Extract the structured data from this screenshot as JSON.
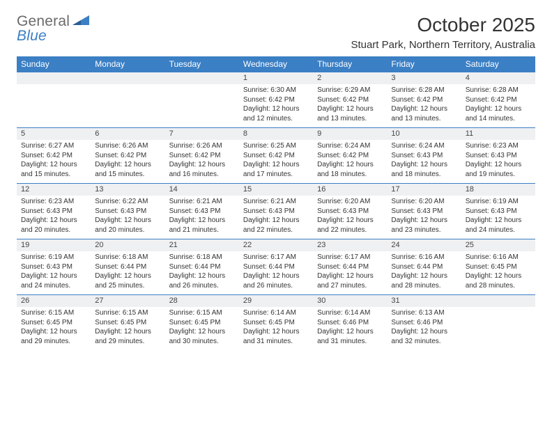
{
  "logo": {
    "word1": "General",
    "word2": "Blue"
  },
  "title": "October 2025",
  "location": "Stuart Park, Northern Territory, Australia",
  "colors": {
    "header_bg": "#3b7fc4",
    "header_text": "#ffffff",
    "daynum_bg": "#eef0f2",
    "rule": "#3b7fc4",
    "body_text": "#333333",
    "logo_gray": "#6a6a6a",
    "logo_blue": "#3b7fc4",
    "page_bg": "#ffffff"
  },
  "day_headers": [
    "Sunday",
    "Monday",
    "Tuesday",
    "Wednesday",
    "Thursday",
    "Friday",
    "Saturday"
  ],
  "weeks": [
    [
      {
        "day": "",
        "sunrise": "",
        "sunset": "",
        "daylight": ""
      },
      {
        "day": "",
        "sunrise": "",
        "sunset": "",
        "daylight": ""
      },
      {
        "day": "",
        "sunrise": "",
        "sunset": "",
        "daylight": ""
      },
      {
        "day": "1",
        "sunrise": "Sunrise: 6:30 AM",
        "sunset": "Sunset: 6:42 PM",
        "daylight": "Daylight: 12 hours and 12 minutes."
      },
      {
        "day": "2",
        "sunrise": "Sunrise: 6:29 AM",
        "sunset": "Sunset: 6:42 PM",
        "daylight": "Daylight: 12 hours and 13 minutes."
      },
      {
        "day": "3",
        "sunrise": "Sunrise: 6:28 AM",
        "sunset": "Sunset: 6:42 PM",
        "daylight": "Daylight: 12 hours and 13 minutes."
      },
      {
        "day": "4",
        "sunrise": "Sunrise: 6:28 AM",
        "sunset": "Sunset: 6:42 PM",
        "daylight": "Daylight: 12 hours and 14 minutes."
      }
    ],
    [
      {
        "day": "5",
        "sunrise": "Sunrise: 6:27 AM",
        "sunset": "Sunset: 6:42 PM",
        "daylight": "Daylight: 12 hours and 15 minutes."
      },
      {
        "day": "6",
        "sunrise": "Sunrise: 6:26 AM",
        "sunset": "Sunset: 6:42 PM",
        "daylight": "Daylight: 12 hours and 15 minutes."
      },
      {
        "day": "7",
        "sunrise": "Sunrise: 6:26 AM",
        "sunset": "Sunset: 6:42 PM",
        "daylight": "Daylight: 12 hours and 16 minutes."
      },
      {
        "day": "8",
        "sunrise": "Sunrise: 6:25 AM",
        "sunset": "Sunset: 6:42 PM",
        "daylight": "Daylight: 12 hours and 17 minutes."
      },
      {
        "day": "9",
        "sunrise": "Sunrise: 6:24 AM",
        "sunset": "Sunset: 6:42 PM",
        "daylight": "Daylight: 12 hours and 18 minutes."
      },
      {
        "day": "10",
        "sunrise": "Sunrise: 6:24 AM",
        "sunset": "Sunset: 6:43 PM",
        "daylight": "Daylight: 12 hours and 18 minutes."
      },
      {
        "day": "11",
        "sunrise": "Sunrise: 6:23 AM",
        "sunset": "Sunset: 6:43 PM",
        "daylight": "Daylight: 12 hours and 19 minutes."
      }
    ],
    [
      {
        "day": "12",
        "sunrise": "Sunrise: 6:23 AM",
        "sunset": "Sunset: 6:43 PM",
        "daylight": "Daylight: 12 hours and 20 minutes."
      },
      {
        "day": "13",
        "sunrise": "Sunrise: 6:22 AM",
        "sunset": "Sunset: 6:43 PM",
        "daylight": "Daylight: 12 hours and 20 minutes."
      },
      {
        "day": "14",
        "sunrise": "Sunrise: 6:21 AM",
        "sunset": "Sunset: 6:43 PM",
        "daylight": "Daylight: 12 hours and 21 minutes."
      },
      {
        "day": "15",
        "sunrise": "Sunrise: 6:21 AM",
        "sunset": "Sunset: 6:43 PM",
        "daylight": "Daylight: 12 hours and 22 minutes."
      },
      {
        "day": "16",
        "sunrise": "Sunrise: 6:20 AM",
        "sunset": "Sunset: 6:43 PM",
        "daylight": "Daylight: 12 hours and 22 minutes."
      },
      {
        "day": "17",
        "sunrise": "Sunrise: 6:20 AM",
        "sunset": "Sunset: 6:43 PM",
        "daylight": "Daylight: 12 hours and 23 minutes."
      },
      {
        "day": "18",
        "sunrise": "Sunrise: 6:19 AM",
        "sunset": "Sunset: 6:43 PM",
        "daylight": "Daylight: 12 hours and 24 minutes."
      }
    ],
    [
      {
        "day": "19",
        "sunrise": "Sunrise: 6:19 AM",
        "sunset": "Sunset: 6:43 PM",
        "daylight": "Daylight: 12 hours and 24 minutes."
      },
      {
        "day": "20",
        "sunrise": "Sunrise: 6:18 AM",
        "sunset": "Sunset: 6:44 PM",
        "daylight": "Daylight: 12 hours and 25 minutes."
      },
      {
        "day": "21",
        "sunrise": "Sunrise: 6:18 AM",
        "sunset": "Sunset: 6:44 PM",
        "daylight": "Daylight: 12 hours and 26 minutes."
      },
      {
        "day": "22",
        "sunrise": "Sunrise: 6:17 AM",
        "sunset": "Sunset: 6:44 PM",
        "daylight": "Daylight: 12 hours and 26 minutes."
      },
      {
        "day": "23",
        "sunrise": "Sunrise: 6:17 AM",
        "sunset": "Sunset: 6:44 PM",
        "daylight": "Daylight: 12 hours and 27 minutes."
      },
      {
        "day": "24",
        "sunrise": "Sunrise: 6:16 AM",
        "sunset": "Sunset: 6:44 PM",
        "daylight": "Daylight: 12 hours and 28 minutes."
      },
      {
        "day": "25",
        "sunrise": "Sunrise: 6:16 AM",
        "sunset": "Sunset: 6:45 PM",
        "daylight": "Daylight: 12 hours and 28 minutes."
      }
    ],
    [
      {
        "day": "26",
        "sunrise": "Sunrise: 6:15 AM",
        "sunset": "Sunset: 6:45 PM",
        "daylight": "Daylight: 12 hours and 29 minutes."
      },
      {
        "day": "27",
        "sunrise": "Sunrise: 6:15 AM",
        "sunset": "Sunset: 6:45 PM",
        "daylight": "Daylight: 12 hours and 29 minutes."
      },
      {
        "day": "28",
        "sunrise": "Sunrise: 6:15 AM",
        "sunset": "Sunset: 6:45 PM",
        "daylight": "Daylight: 12 hours and 30 minutes."
      },
      {
        "day": "29",
        "sunrise": "Sunrise: 6:14 AM",
        "sunset": "Sunset: 6:45 PM",
        "daylight": "Daylight: 12 hours and 31 minutes."
      },
      {
        "day": "30",
        "sunrise": "Sunrise: 6:14 AM",
        "sunset": "Sunset: 6:46 PM",
        "daylight": "Daylight: 12 hours and 31 minutes."
      },
      {
        "day": "31",
        "sunrise": "Sunrise: 6:13 AM",
        "sunset": "Sunset: 6:46 PM",
        "daylight": "Daylight: 12 hours and 32 minutes."
      },
      {
        "day": "",
        "sunrise": "",
        "sunset": "",
        "daylight": ""
      }
    ]
  ]
}
